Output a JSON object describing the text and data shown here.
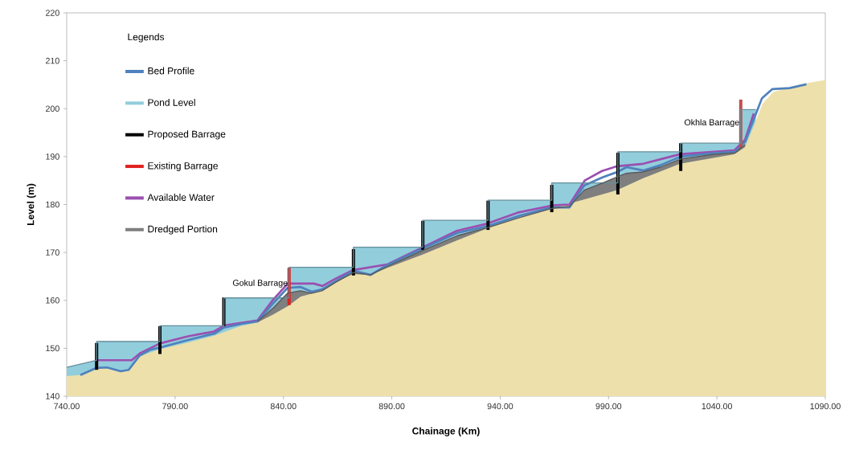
{
  "chart_data": {
    "type": "line",
    "xlabel": "Chainage (Km)",
    "ylabel": "Level (m)",
    "legend_title": "Legends",
    "legend": "top left",
    "xlim": [
      740,
      1090
    ],
    "ylim": [
      140,
      220
    ],
    "xticks": [
      {
        "value": 740,
        "label": "740.00"
      },
      {
        "value": 790,
        "label": "790.00"
      },
      {
        "value": 840,
        "label": "840.00"
      },
      {
        "value": 890,
        "label": "890.00"
      },
      {
        "value": 940,
        "label": "940.00"
      },
      {
        "value": 990,
        "label": "990.00"
      },
      {
        "value": 1040,
        "label": "1040.00"
      },
      {
        "value": 1090,
        "label": "1090.00"
      }
    ],
    "yticks": [
      140,
      150,
      160,
      170,
      180,
      190,
      200,
      210,
      220
    ],
    "annotations": [
      {
        "text": "Gokul Barrage",
        "x": 842.6,
        "y": 163.5
      },
      {
        "text": "Okhla Barrage",
        "x": 1051,
        "y": 197
      }
    ],
    "series": [
      {
        "name": "Bed Profile",
        "color": "#4f81bd",
        "x": [
          746.3,
          753.8,
          758.6,
          764.9,
          768.6,
          773.5,
          778.7,
          783.5,
          795.8,
          808.4,
          812.5,
          820.7,
          828.1,
          835.5,
          841.9,
          847.8,
          853,
          857.8,
          864.2,
          872.3,
          880.2,
          887.6,
          903.6,
          920.3,
          934.4,
          948.5,
          963.8,
          972,
          978.8,
          987.4,
          994.1,
          998.3,
          1006,
          1013.9,
          1023.3,
          1037.4,
          1048.4,
          1053,
          1057.8,
          1060.8,
          1065.6,
          1073.5,
          1081.3
        ],
        "values": [
          144.4,
          145.9,
          146,
          145.2,
          145.5,
          148.4,
          149.7,
          150.2,
          151.7,
          153.1,
          154.3,
          155.1,
          155.6,
          159.5,
          162.6,
          162.8,
          161.8,
          162.3,
          164,
          166.2,
          165.3,
          167.3,
          170.7,
          174.1,
          175.5,
          177.6,
          179.4,
          179.4,
          184,
          185.7,
          186.8,
          187.8,
          187.1,
          188.2,
          190,
          190.7,
          191,
          193.1,
          198.7,
          202.2,
          204.1,
          204.3,
          205.1
        ]
      },
      {
        "type": "area",
        "name": "Pond Level",
        "color": "#92cddc",
        "x": [
          740,
          753.8,
          753.8,
          783,
          783,
          812.5,
          812.5,
          842.6,
          842.6,
          872.3,
          872.3,
          904.3,
          904.3,
          934.4,
          934.4,
          963.8,
          963.8,
          994.3,
          994.3,
          1023.3,
          1023.3,
          1051,
          1051,
          1058
        ],
        "values": [
          146,
          147.5,
          151.4,
          151.4,
          154.7,
          154.7,
          160.5,
          160.5,
          166.9,
          166.9,
          171.1,
          171.1,
          176.7,
          176.7,
          180.9,
          180.9,
          184.5,
          184.5,
          191,
          191,
          192.8,
          192.8,
          199.8,
          199.8
        ]
      },
      {
        "type": "bar",
        "name": "Proposed Barrage",
        "color": "#000000",
        "x": [
          753.8,
          783,
          812.5,
          872.3,
          904.3,
          934.4,
          963.8,
          994.3,
          1023.3
        ],
        "base": [
          145.5,
          148.8,
          154.6,
          165.2,
          170.5,
          174.7,
          178.4,
          182.1,
          187
        ],
        "values": [
          5.6,
          5.8,
          6.0,
          5.5,
          6.1,
          6.1,
          5.7,
          8.7,
          5.8
        ]
      },
      {
        "type": "bar",
        "name": "Existing Barrage",
        "color": "#c0504d",
        "colors": [
          "#e02020",
          "#c0504d"
        ],
        "x": [
          842.6,
          1051
        ],
        "base": [
          159,
          191.7
        ],
        "values": [
          7.8,
          10.2
        ]
      },
      {
        "name": "Available Water",
        "color": "#9b4fb0",
        "x": [
          754,
          770,
          774,
          783,
          796,
          808,
          813,
          828,
          835,
          842,
          854,
          858,
          864,
          872,
          888,
          904,
          920,
          934,
          948,
          964,
          972,
          979,
          987,
          994,
          1006,
          1023,
          1048,
          1053,
          1057
        ],
        "values": [
          147.5,
          147.5,
          149,
          151,
          152.5,
          153.5,
          154.8,
          155.8,
          160,
          163.5,
          163.5,
          163,
          164.5,
          166.3,
          167.5,
          171,
          174.5,
          176,
          178.3,
          179.8,
          180,
          185,
          187,
          188,
          188.5,
          190.5,
          191.3,
          193.5,
          199
        ]
      },
      {
        "type": "area",
        "name": "Dredged Portion",
        "color": "#7f7f7f",
        "x": [
          828.1,
          835.5,
          841.9,
          847.8,
          853,
          857.8,
          864.2,
          872.3,
          880.2,
          887.6,
          903.6,
          920.3,
          934.4,
          948.5,
          963.8,
          972,
          978.8,
          987.4,
          994.1,
          998.3,
          1006,
          1013.9,
          1023.3,
          1037.4,
          1048.4,
          1053
        ],
        "values": [
          155.6,
          158.5,
          161.5,
          162,
          161.5,
          162,
          163.8,
          165.8,
          165.3,
          167,
          170.3,
          173.5,
          175.2,
          177.2,
          179.2,
          179.6,
          183,
          184.5,
          185.8,
          186.5,
          186.8,
          187.8,
          189.5,
          190.4,
          190.8,
          192.5
        ]
      },
      {
        "type": "area",
        "color": "#ede0ab",
        "x": [
          740,
          746,
          754,
          759,
          765,
          769,
          774,
          783,
          796,
          808,
          820,
          828,
          835,
          842,
          848,
          854,
          858,
          864,
          872,
          880,
          888,
          904,
          920,
          934,
          948,
          964,
          980,
          994,
          1006,
          1023,
          1048,
          1053,
          1058,
          1061,
          1066,
          1080,
          1090
        ],
        "values": [
          144.2,
          144.4,
          145.9,
          146,
          145.2,
          145.5,
          148.4,
          149.8,
          151.2,
          152.6,
          154.6,
          155.4,
          157,
          158.8,
          160.8,
          161.5,
          162.2,
          163.8,
          165.5,
          165.3,
          166.8,
          169.5,
          172.5,
          175,
          177.2,
          179.2,
          181.2,
          183,
          185.5,
          188.5,
          190.5,
          192,
          197.5,
          201,
          203.5,
          205.2,
          206
        ]
      }
    ]
  }
}
